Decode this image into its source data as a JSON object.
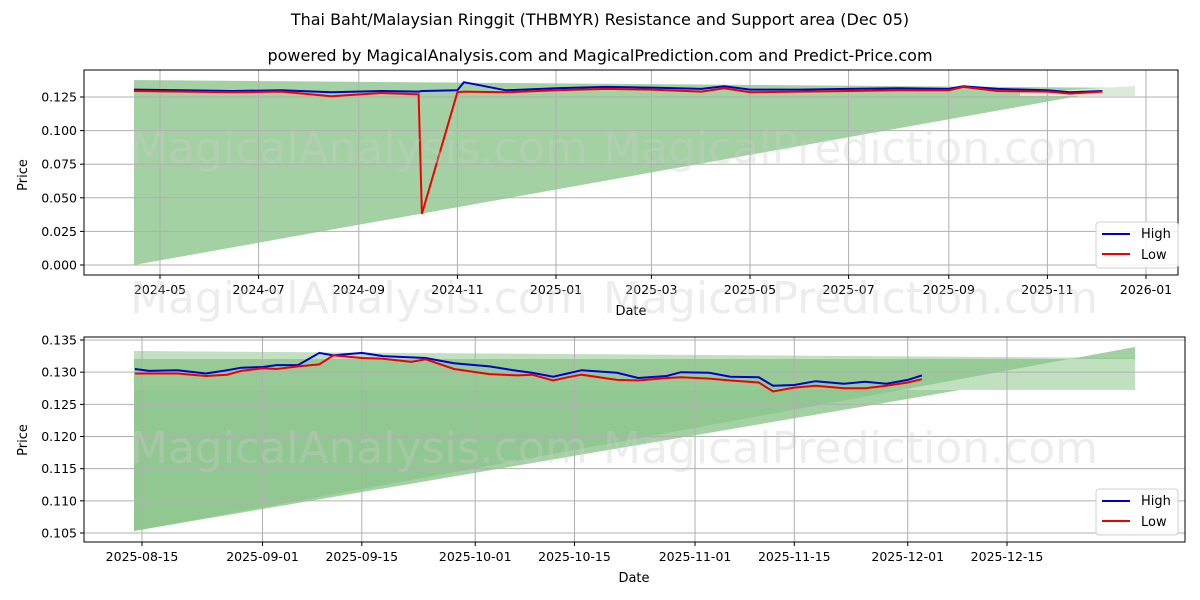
{
  "title": "Thai Baht/Malaysian Ringgit (THBMYR) Resistance and Support area (Dec 05)",
  "subtitle": "powered by MagicalAnalysis.com and MagicalPrediction.com and Predict-Price.com",
  "watermarks": [
    "MagicalAnalysis.com",
    "MagicalPrediction.com"
  ],
  "colors": {
    "high": "#0000cc",
    "low": "#ee0000",
    "area": "#8cc68c",
    "area_light": "#d9ecd9",
    "grid": "#b0b0b0"
  },
  "chart_data": [
    {
      "type": "line",
      "title": "Full history",
      "xlabel": "Date",
      "ylabel": "Price",
      "x_ticks": [
        "2024-05",
        "2024-07",
        "2024-09",
        "2024-11",
        "2025-01",
        "2025-03",
        "2025-05",
        "2025-07",
        "2025-09",
        "2025-11",
        "2026-01"
      ],
      "y_ticks": [
        "0.000",
        "0.025",
        "0.050",
        "0.075",
        "0.100",
        "0.125"
      ],
      "ylim": [
        -0.005,
        0.14
      ],
      "grid": true,
      "legend": {
        "position": "lower right",
        "entries": [
          "High",
          "Low"
        ]
      },
      "x": [
        "2024-04-15",
        "2024-05-15",
        "2024-06-15",
        "2024-07-15",
        "2024-08-15",
        "2024-09-15",
        "2024-10-08",
        "2024-10-10",
        "2024-11-01",
        "2024-11-05",
        "2024-12-01",
        "2025-01-01",
        "2025-02-01",
        "2025-03-01",
        "2025-04-01",
        "2025-04-15",
        "2025-05-01",
        "2025-06-01",
        "2025-07-01",
        "2025-08-01",
        "2025-09-01",
        "2025-09-10",
        "2025-10-01",
        "2025-11-01",
        "2025-11-15",
        "2025-12-05"
      ],
      "series": [
        {
          "name": "High",
          "values": [
            0.1305,
            0.13,
            0.1295,
            0.13,
            0.1285,
            0.1295,
            0.129,
            0.1295,
            0.13,
            0.136,
            0.13,
            0.1315,
            0.1325,
            0.132,
            0.131,
            0.133,
            0.1305,
            0.1305,
            0.131,
            0.1315,
            0.131,
            0.133,
            0.131,
            0.13,
            0.1285,
            0.1295
          ]
        },
        {
          "name": "Low",
          "values": [
            0.1295,
            0.129,
            0.1285,
            0.129,
            0.1255,
            0.128,
            0.127,
            0.038,
            0.1285,
            0.129,
            0.1285,
            0.13,
            0.131,
            0.1305,
            0.129,
            0.1315,
            0.1285,
            0.129,
            0.1295,
            0.13,
            0.13,
            0.1325,
            0.1295,
            0.129,
            0.1275,
            0.129
          ]
        }
      ],
      "resistance_area": {
        "start": "2024-04-15",
        "end": "2025-12-27",
        "upper": [
          0.1375,
          0.132
        ]
      },
      "support_area": {
        "start": "2024-04-15",
        "end": "2025-12-27",
        "lower": [
          0.0,
          0.1335
        ]
      }
    },
    {
      "type": "line",
      "title": "Recent detail",
      "xlabel": "Date",
      "ylabel": "Price",
      "x_ticks": [
        "2025-08-15",
        "2025-09-01",
        "2025-09-15",
        "2025-10-01",
        "2025-10-15",
        "2025-11-01",
        "2025-11-15",
        "2025-12-01",
        "2025-12-15"
      ],
      "y_ticks": [
        "0.105",
        "0.110",
        "0.115",
        "0.120",
        "0.125",
        "0.130",
        "0.135"
      ],
      "ylim": [
        0.1037,
        0.1354
      ],
      "grid": true,
      "legend": {
        "position": "lower right",
        "entries": [
          "High",
          "Low"
        ]
      },
      "x": [
        "2025-08-14",
        "2025-08-16",
        "2025-08-20",
        "2025-08-24",
        "2025-08-27",
        "2025-08-29",
        "2025-09-01",
        "2025-09-03",
        "2025-09-06",
        "2025-09-09",
        "2025-09-11",
        "2025-09-15",
        "2025-09-18",
        "2025-09-22",
        "2025-09-24",
        "2025-09-28",
        "2025-10-03",
        "2025-10-07",
        "2025-10-09",
        "2025-10-12",
        "2025-10-14",
        "2025-10-16",
        "2025-10-21",
        "2025-10-24",
        "2025-10-28",
        "2025-10-30",
        "2025-11-03",
        "2025-11-06",
        "2025-11-10",
        "2025-11-12",
        "2025-11-15",
        "2025-11-18",
        "2025-11-22",
        "2025-11-25",
        "2025-11-28",
        "2025-12-01",
        "2025-12-03"
      ],
      "series": [
        {
          "name": "High",
          "values": [
            0.1305,
            0.1302,
            0.1303,
            0.1298,
            0.1303,
            0.1307,
            0.1308,
            0.1311,
            0.1311,
            0.133,
            0.1326,
            0.133,
            0.1325,
            0.1323,
            0.1322,
            0.1314,
            0.1309,
            0.1302,
            0.1299,
            0.1293,
            0.1298,
            0.1303,
            0.1299,
            0.1291,
            0.1294,
            0.13,
            0.1299,
            0.1293,
            0.1292,
            0.1279,
            0.128,
            0.1286,
            0.1282,
            0.1285,
            0.1282,
            0.1288,
            0.1295
          ]
        },
        {
          "name": "Low",
          "values": [
            0.1298,
            0.1298,
            0.1298,
            0.1294,
            0.1296,
            0.1302,
            0.1306,
            0.1305,
            0.1309,
            0.1312,
            0.1326,
            0.1322,
            0.1321,
            0.1316,
            0.132,
            0.1305,
            0.1297,
            0.1295,
            0.1296,
            0.1287,
            0.1292,
            0.1296,
            0.1288,
            0.1287,
            0.1291,
            0.1292,
            0.129,
            0.1287,
            0.1284,
            0.127,
            0.1276,
            0.1279,
            0.1275,
            0.1275,
            0.1279,
            0.1284,
            0.1289
          ]
        }
      ],
      "resistance_area": {
        "start": "2025-08-14",
        "end": "2025-12-27",
        "upper": [
          0.1332,
          0.132
        ],
        "lower": [
          0.1274,
          0.1274
        ]
      },
      "support_area": {
        "start": "2025-08-14",
        "end": "2025-12-27",
        "lower": [
          0.1053,
          0.1336
        ]
      }
    }
  ],
  "axes_labels": {
    "top": {
      "x": "Date",
      "y": "Price",
      "x_ticks": [
        "2024-05",
        "2024-07",
        "2024-09",
        "2024-11",
        "2025-01",
        "2025-03",
        "2025-05",
        "2025-07",
        "2025-09",
        "2025-11",
        "2026-01"
      ],
      "y_ticks": [
        "0.000",
        "0.025",
        "0.050",
        "0.075",
        "0.100",
        "0.125"
      ]
    },
    "bottom": {
      "x": "Date",
      "y": "Price",
      "x_ticks": [
        "2025-08-15",
        "2025-09-01",
        "2025-09-15",
        "2025-10-01",
        "2025-10-15",
        "2025-11-01",
        "2025-11-15",
        "2025-12-01",
        "2025-12-15"
      ],
      "y_ticks": [
        "0.105",
        "0.110",
        "0.115",
        "0.120",
        "0.125",
        "0.130",
        "0.135"
      ]
    }
  },
  "legend": {
    "high": "High",
    "low": "Low"
  }
}
